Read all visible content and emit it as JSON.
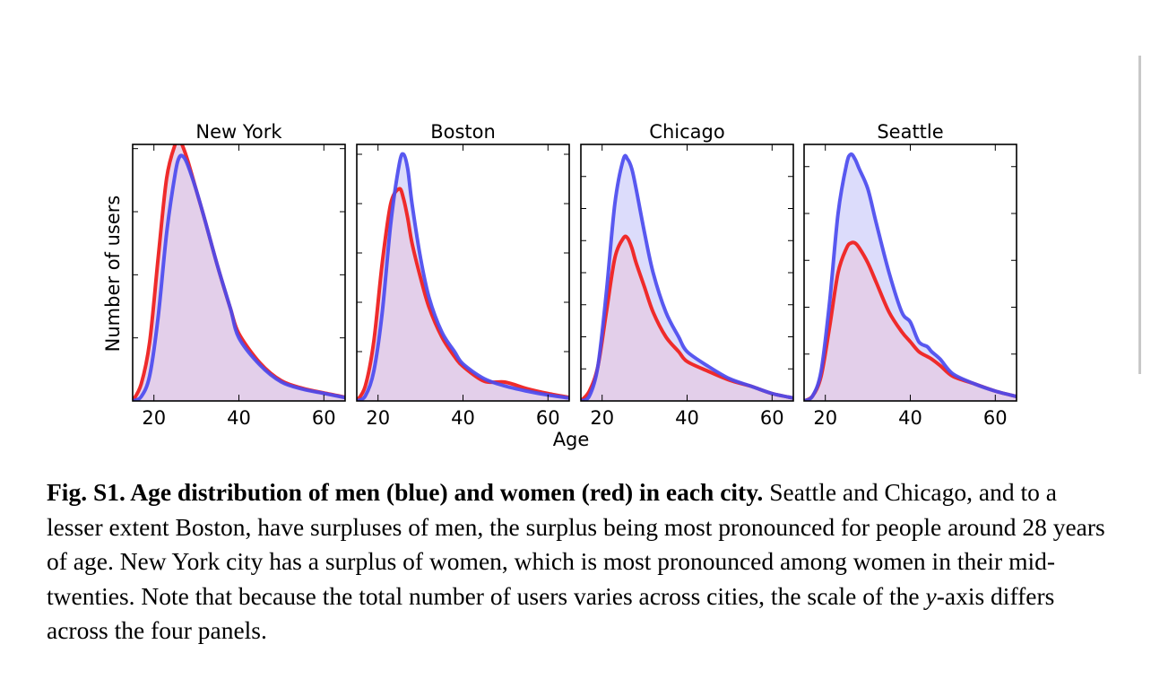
{
  "chart_data": [
    {
      "type": "area",
      "title": "New York",
      "xlim": [
        15,
        65
      ],
      "ylim": [
        0,
        0.061
      ],
      "xticks": [
        20,
        40,
        60
      ],
      "x": [
        15,
        17,
        19,
        21,
        23,
        25,
        26,
        27,
        28,
        30,
        32,
        35,
        38,
        40,
        45,
        50,
        55,
        60,
        65
      ],
      "series": [
        {
          "color": "#4b4bef",
          "values": [
            0,
            0.001,
            0.006,
            0.02,
            0.04,
            0.054,
            0.058,
            0.058,
            0.056,
            0.05,
            0.043,
            0.032,
            0.022,
            0.015,
            0.0085,
            0.0045,
            0.0028,
            0.0018,
            0.0008
          ]
        },
        {
          "color": "#ef2b2b",
          "values": [
            0,
            0.004,
            0.014,
            0.034,
            0.053,
            0.061,
            0.062,
            0.06,
            0.057,
            0.05,
            0.043,
            0.032,
            0.022,
            0.016,
            0.009,
            0.0048,
            0.003,
            0.0019,
            0.0009
          ]
        }
      ],
      "yticks": [
        0.015,
        0.03,
        0.045,
        0.06
      ]
    },
    {
      "type": "area",
      "title": "Boston",
      "xlim": [
        15,
        65
      ],
      "ylim": [
        0,
        0.052
      ],
      "xticks": [
        20,
        40,
        60
      ],
      "x": [
        15,
        17,
        19,
        21,
        23,
        25,
        26,
        27,
        28,
        30,
        32,
        35,
        38,
        40,
        45,
        50,
        55,
        60,
        65
      ],
      "series": [
        {
          "color": "#4b4bef",
          "values": [
            0,
            0.001,
            0.006,
            0.018,
            0.036,
            0.048,
            0.05,
            0.047,
            0.04,
            0.029,
            0.021,
            0.014,
            0.01,
            0.0075,
            0.0045,
            0.003,
            0.002,
            0.0012,
            0.0006
          ]
        },
        {
          "color": "#ef2b2b",
          "values": [
            0,
            0.003,
            0.012,
            0.028,
            0.04,
            0.043,
            0.041,
            0.037,
            0.032,
            0.025,
            0.019,
            0.013,
            0.009,
            0.007,
            0.004,
            0.0038,
            0.0025,
            0.0015,
            0.0007
          ]
        }
      ],
      "yticks": [
        0.01,
        0.02,
        0.03,
        0.04,
        0.05
      ]
    },
    {
      "type": "area",
      "title": "Chicago",
      "xlim": [
        15,
        65
      ],
      "ylim": [
        0,
        0.052
      ],
      "xticks": [
        20,
        40,
        60
      ],
      "x": [
        15,
        17,
        19,
        21,
        23,
        25,
        26,
        27,
        28,
        30,
        32,
        35,
        38,
        40,
        45,
        50,
        55,
        60,
        65
      ],
      "series": [
        {
          "color": "#4b4bef",
          "values": [
            0,
            0.001,
            0.007,
            0.022,
            0.04,
            0.049,
            0.049,
            0.047,
            0.043,
            0.034,
            0.026,
            0.018,
            0.013,
            0.01,
            0.007,
            0.0045,
            0.003,
            0.0015,
            0.0006
          ]
        },
        {
          "color": "#ef2b2b",
          "values": [
            0,
            0.002,
            0.007,
            0.018,
            0.029,
            0.033,
            0.033,
            0.031,
            0.028,
            0.023,
            0.018,
            0.013,
            0.01,
            0.008,
            0.006,
            0.0042,
            0.003,
            0.0015,
            0.0006
          ]
        }
      ],
      "yticks": [
        0.0065,
        0.013,
        0.0195,
        0.026,
        0.0325,
        0.039,
        0.0455,
        0.052
      ]
    },
    {
      "type": "area",
      "title": "Seattle",
      "xlim": [
        15,
        65
      ],
      "ylim": [
        0,
        0.052
      ],
      "xticks": [
        20,
        40,
        60
      ],
      "x": [
        15,
        17,
        19,
        21,
        23,
        25,
        26,
        27,
        28,
        30,
        32,
        35,
        38,
        40,
        42,
        44,
        45,
        47,
        50,
        55,
        60,
        65
      ],
      "series": [
        {
          "color": "#4b4bef",
          "values": [
            0,
            0.001,
            0.006,
            0.02,
            0.038,
            0.048,
            0.05,
            0.049,
            0.047,
            0.043,
            0.036,
            0.026,
            0.018,
            0.016,
            0.012,
            0.011,
            0.01,
            0.0085,
            0.0055,
            0.0035,
            0.002,
            0.0009
          ]
        },
        {
          "color": "#ef2b2b",
          "values": [
            0,
            0.001,
            0.005,
            0.015,
            0.026,
            0.031,
            0.032,
            0.032,
            0.031,
            0.028,
            0.024,
            0.018,
            0.014,
            0.012,
            0.01,
            0.009,
            0.0085,
            0.0072,
            0.005,
            0.0035,
            0.002,
            0.0009
          ]
        }
      ],
      "yticks": [
        0.0095,
        0.019,
        0.0285,
        0.038,
        0.0475
      ]
    }
  ],
  "shared": {
    "xlabel": "Age",
    "ylabel": "Number of users",
    "men_color": "#4b4bef",
    "women_color": "#ef2b2b",
    "men_fill": "#dcdcfb",
    "women_fill": "#e4cde6"
  },
  "caption": {
    "title": "Fig. S1. Age distribution of men (blue) and women (red) in each city.",
    "text_before_italic": "Seattle and Chicago, and to a lesser extent Boston, have surpluses of men, the surplus being most pronounced for people around 28 years of age. New York city has a surplus of women, which is most pronounced among women in their mid-twenties. Note that because the total number of users varies across cities, the scale of the ",
    "italic": "y",
    "text_after_italic": "-axis differs across the four panels."
  }
}
